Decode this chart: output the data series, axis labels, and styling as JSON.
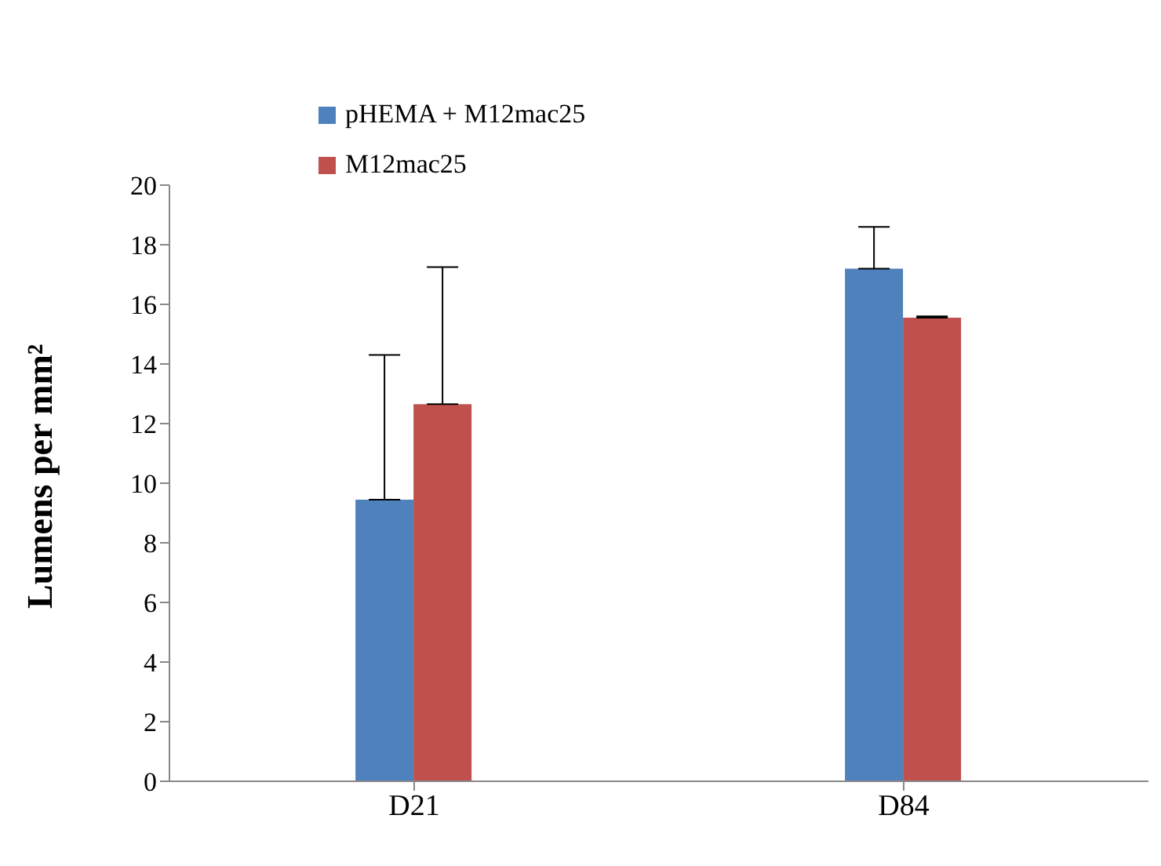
{
  "chart_data": {
    "type": "bar",
    "ylabel": "Lumens per mm²",
    "categories": [
      "D21",
      "D84"
    ],
    "series": [
      {
        "name": "pHEMA + M12mac25",
        "color": "#4f81bd",
        "values": [
          9.45,
          17.2
        ],
        "errors": [
          [
            9.45,
            14.3
          ],
          [
            17.2,
            18.6
          ]
        ]
      },
      {
        "name": "M12mac25",
        "color": "#c0504d",
        "values": [
          12.65,
          15.55
        ],
        "errors": [
          [
            12.65,
            17.25
          ],
          [
            15.55,
            15.6
          ]
        ]
      }
    ],
    "ylim": [
      0,
      20
    ],
    "yticks": [
      0,
      2,
      4,
      6,
      8,
      10,
      12,
      14,
      16,
      18,
      20
    ],
    "grid": false,
    "legend": "top left"
  }
}
